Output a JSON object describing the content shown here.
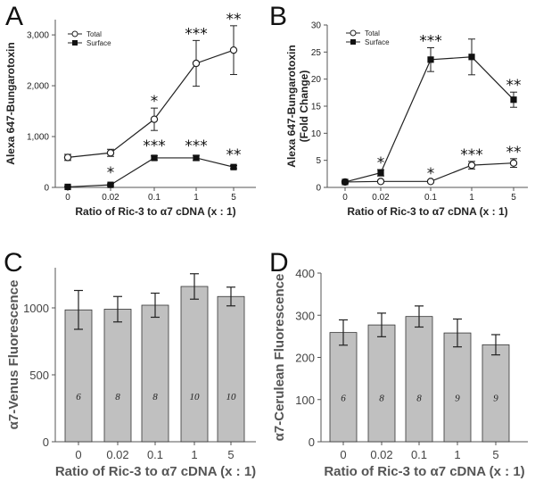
{
  "chart_data": [
    {
      "panel": "A",
      "type": "line",
      "categories": [
        "0",
        "0.02",
        "0.1",
        "1",
        "5"
      ],
      "xlabel": "Ratio of Ric-3 to α7 cDNA (x : 1)",
      "ylabel": "Alexa 647-Bungarotoxin",
      "yticks": [
        "0",
        "1,000",
        "2,000",
        "3,000"
      ],
      "ylim": [
        0,
        3300
      ],
      "legend_position": "top-left",
      "series": [
        {
          "name": "Total",
          "marker": "open-circle",
          "values": [
            590,
            680,
            1340,
            2440,
            2700
          ],
          "errors": [
            60,
            70,
            220,
            450,
            480
          ],
          "significance": [
            "",
            "",
            "*",
            "***",
            "**"
          ]
        },
        {
          "name": "Surface",
          "marker": "filled-square",
          "values": [
            10,
            50,
            580,
            580,
            400
          ],
          "errors": [
            10,
            20,
            40,
            50,
            30
          ],
          "significance": [
            "",
            "*",
            "***",
            "***",
            "**"
          ]
        }
      ]
    },
    {
      "panel": "B",
      "type": "line",
      "categories": [
        "0",
        "0.02",
        "0.1",
        "1",
        "5"
      ],
      "xlabel": "Ratio of Ric-3 to α7 cDNA (x : 1)",
      "ylabel": "Alexa 647-Bungarotoxin",
      "ylabel2": "(Fold Change)",
      "yticks": [
        "0",
        "5",
        "10",
        "15",
        "20",
        "25",
        "30"
      ],
      "ylim": [
        0,
        30
      ],
      "legend_position": "top-left",
      "series": [
        {
          "name": "Total",
          "marker": "open-circle",
          "values": [
            1,
            1.1,
            1.1,
            4.1,
            4.5
          ],
          "errors": [
            0.2,
            0.2,
            0.2,
            0.7,
            0.8
          ],
          "significance": [
            "",
            "",
            "*",
            "***",
            "**"
          ]
        },
        {
          "name": "Surface",
          "marker": "filled-square",
          "values": [
            1,
            2.7,
            23.6,
            24.1,
            16.2
          ],
          "errors": [
            0.2,
            0.6,
            2.2,
            3.3,
            1.4
          ],
          "significance": [
            "",
            "*",
            "***",
            "",
            "**"
          ]
        }
      ]
    },
    {
      "panel": "C",
      "type": "bar",
      "categories": [
        "0",
        "0.02",
        "0.1",
        "1",
        "5"
      ],
      "xlabel": "Ratio of Ric-3 to α7 cDNA (x : 1)",
      "ylabel": "α7-Venus Fluorescence",
      "yticks": [
        "0",
        "500",
        "1000"
      ],
      "ylim": [
        0,
        1300
      ],
      "values": [
        985,
        990,
        1020,
        1160,
        1085
      ],
      "errors": [
        145,
        95,
        90,
        95,
        70
      ],
      "n_labels": [
        "6",
        "8",
        "8",
        "10",
        "10"
      ],
      "bar_color": "#c0c0c0"
    },
    {
      "panel": "D",
      "type": "bar",
      "categories": [
        "0",
        "0.02",
        "0.1",
        "1",
        "5"
      ],
      "xlabel": "Ratio of Ric-3 to α7 cDNA (x : 1)",
      "ylabel": "α7-Cerulean Fluorescence",
      "yticks": [
        "0",
        "100",
        "200",
        "300",
        "400"
      ],
      "ylim": [
        0,
        400
      ],
      "values": [
        259,
        277,
        297,
        258,
        230
      ],
      "errors": [
        30,
        28,
        25,
        33,
        24
      ],
      "n_labels": [
        "6",
        "8",
        "8",
        "9",
        "9"
      ],
      "bar_color": "#c0c0c0"
    }
  ]
}
